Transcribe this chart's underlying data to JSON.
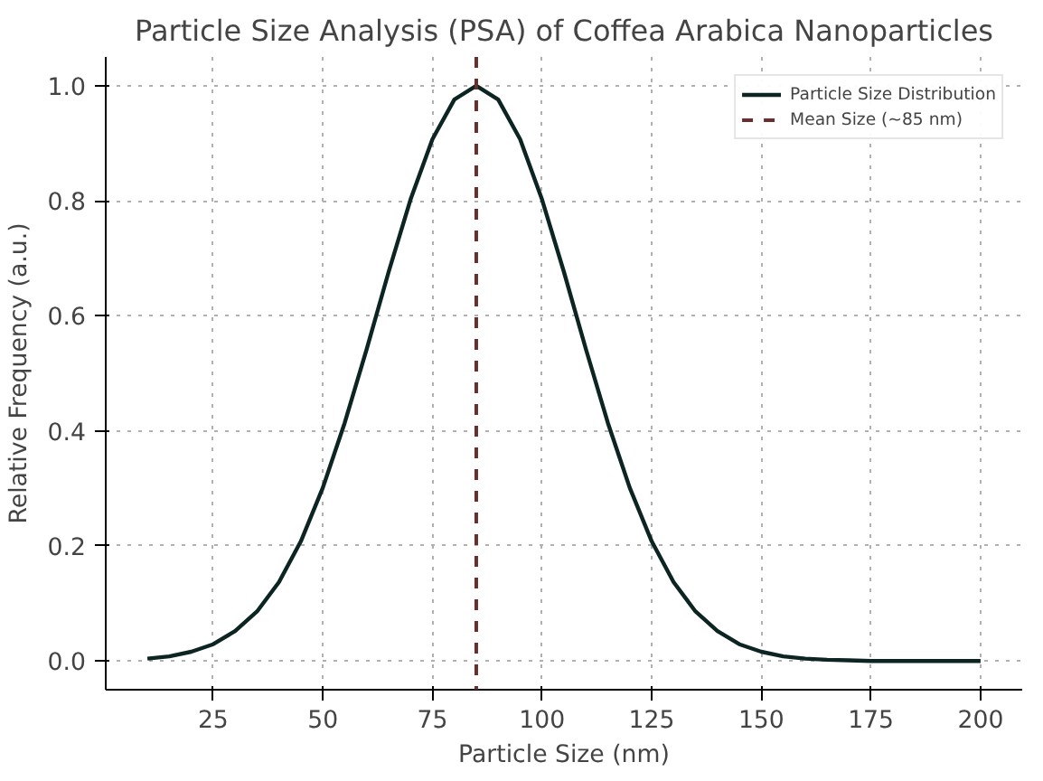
{
  "chart_data": {
    "type": "line",
    "title": "Particle Size Analysis (PSA) of Coffea Arabica Nanoparticles",
    "xlabel": "Particle Size (nm)",
    "ylabel": "Relative Frequency (a.u.)",
    "x": [
      10,
      15,
      20,
      25,
      30,
      35,
      40,
      45,
      50,
      55,
      60,
      65,
      70,
      75,
      80,
      85,
      90,
      95,
      100,
      105,
      110,
      115,
      120,
      125,
      130,
      135,
      140,
      145,
      150,
      155,
      160,
      165,
      170,
      175,
      180,
      185,
      190,
      195,
      200
    ],
    "series": [
      {
        "name": "Particle Size Distribution",
        "color": "#0d2522",
        "values": [
          0.004,
          0.008,
          0.016,
          0.029,
          0.052,
          0.086,
          0.137,
          0.208,
          0.301,
          0.414,
          0.542,
          0.676,
          0.802,
          0.907,
          0.976,
          1.0,
          0.976,
          0.907,
          0.802,
          0.676,
          0.542,
          0.414,
          0.301,
          0.208,
          0.137,
          0.086,
          0.052,
          0.029,
          0.016,
          0.008,
          0.004,
          0.002,
          0.001,
          0,
          0,
          0,
          0,
          0,
          0
        ]
      }
    ],
    "ref_lines": [
      {
        "axis": "x",
        "value": 85,
        "label": "Mean Size (~85 nm)",
        "color": "#6b2e2e",
        "line_style": "dashed"
      }
    ],
    "xlim": [
      0.5,
      209.5
    ],
    "ylim": [
      -0.05,
      1.05
    ],
    "xticks": [
      25,
      50,
      75,
      100,
      125,
      150,
      175,
      200
    ],
    "yticks": [
      {
        "value": 0,
        "label": "0.0"
      },
      {
        "value": 0.2,
        "label": "0.2"
      },
      {
        "value": 0.4,
        "label": "0.4"
      },
      {
        "value": 0.6,
        "label": "0.6"
      },
      {
        "value": 0.8,
        "label": "0.8"
      },
      {
        "value": 1.0,
        "label": "1.0"
      }
    ],
    "grid": true,
    "legend": "top right",
    "line_style": "solid"
  }
}
